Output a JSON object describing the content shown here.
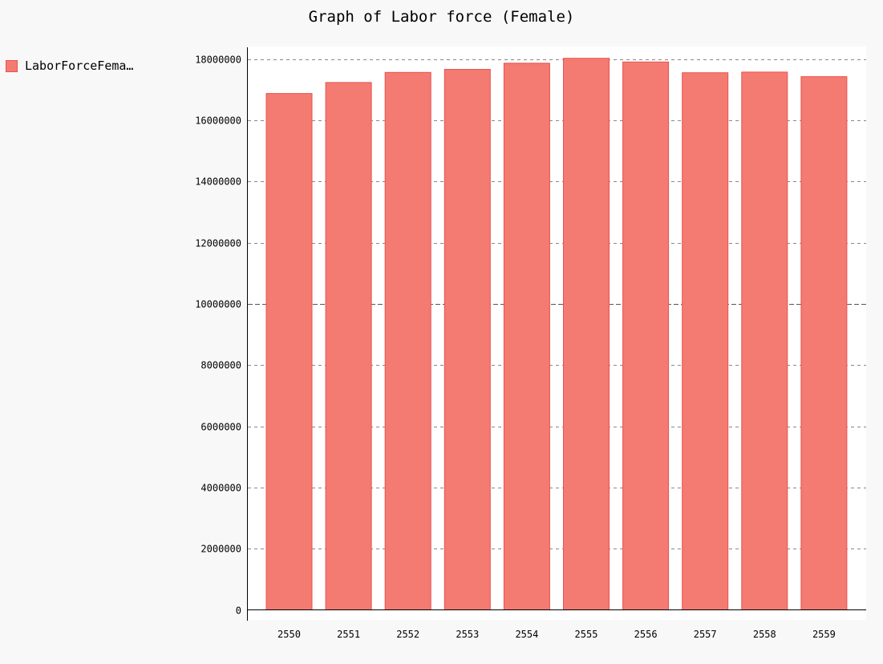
{
  "chart_data": {
    "type": "bar",
    "title": "Graph of Labor force (Female)",
    "xlabel": "",
    "ylabel": "",
    "categories": [
      "2550",
      "2551",
      "2552",
      "2553",
      "2554",
      "2555",
      "2556",
      "2557",
      "2558",
      "2559"
    ],
    "series": [
      {
        "name": "LaborForceFema…",
        "color": "#f47b72",
        "values": [
          16870000,
          17230000,
          17560000,
          17660000,
          17860000,
          18020000,
          17900000,
          17550000,
          17570000,
          17420000
        ]
      }
    ],
    "ylim": [
      0,
      18000000
    ],
    "yticks": [
      "0",
      "2000000",
      "4000000",
      "6000000",
      "8000000",
      "10000000",
      "12000000",
      "14000000",
      "16000000",
      "18000000"
    ],
    "grid": true,
    "legend_position": "top-left"
  }
}
